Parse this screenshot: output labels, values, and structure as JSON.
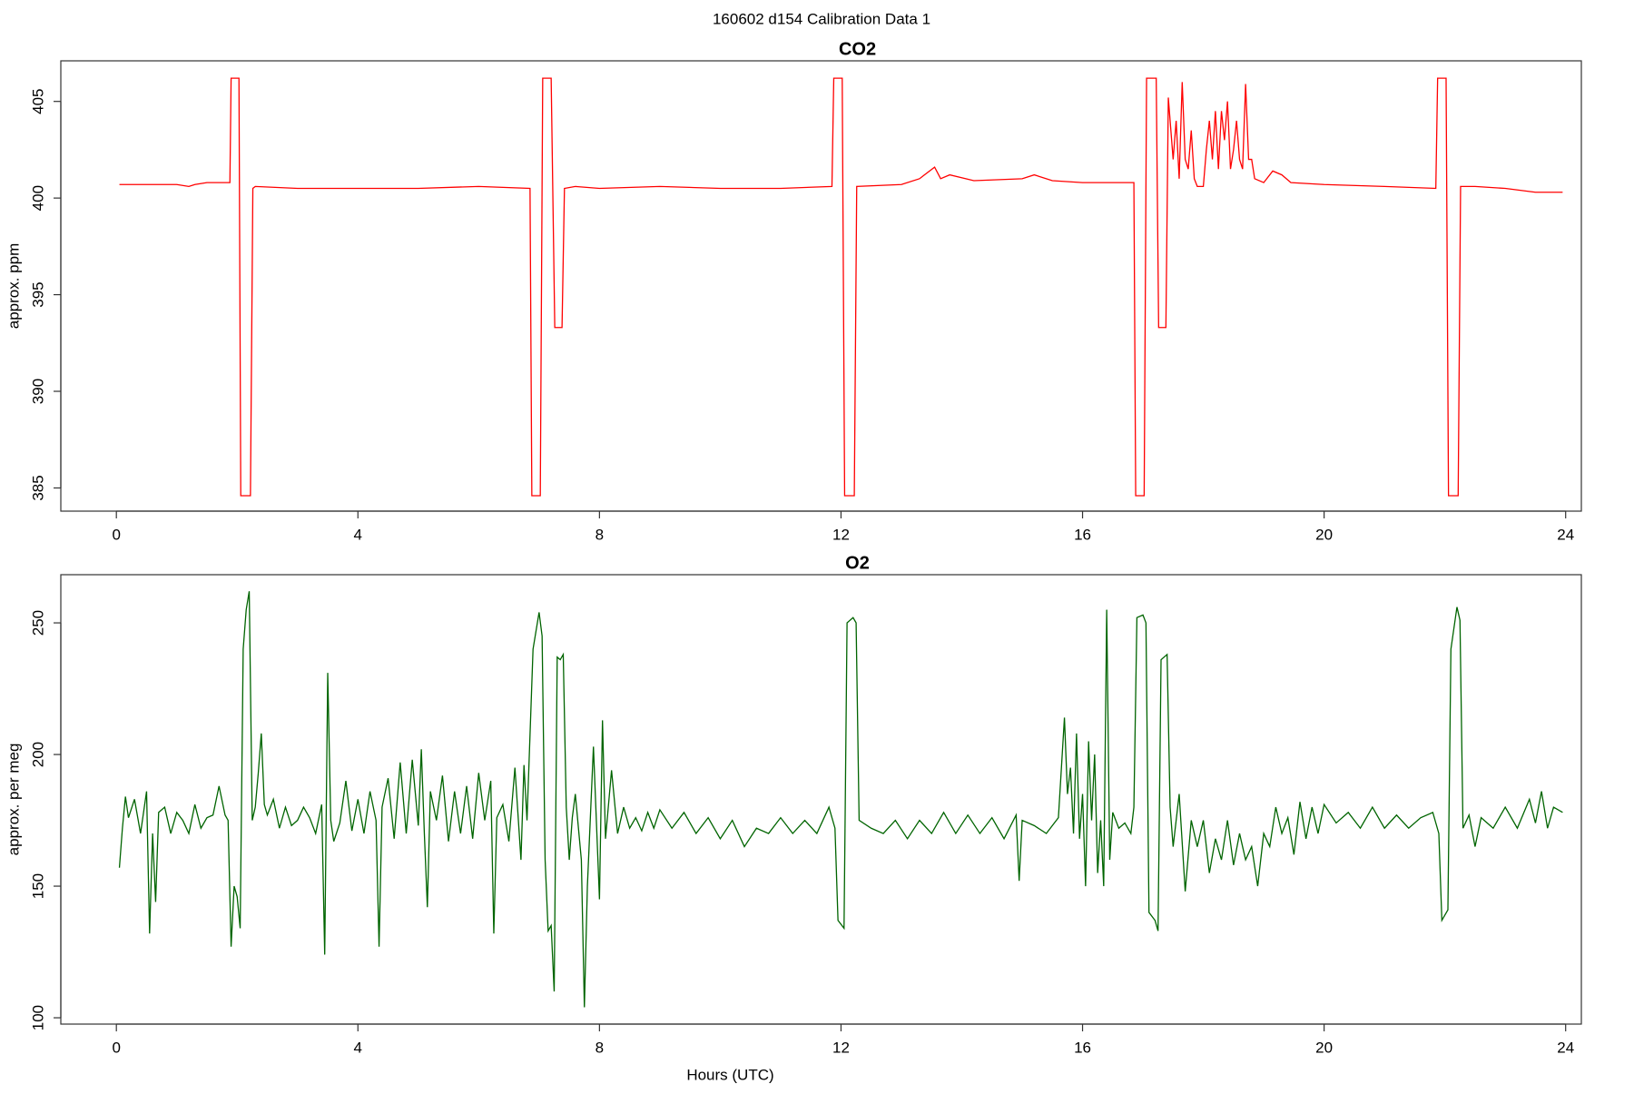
{
  "title": "160602   d154   Calibration Data 1",
  "chart_data": [
    {
      "type": "line",
      "title": "CO2",
      "ylabel": "approx. ppm",
      "color": "#ff0000",
      "xlim": [
        -0.92,
        24.26
      ],
      "xticks": [
        0,
        4,
        8,
        12,
        16,
        20,
        24
      ],
      "ylim": [
        383.8,
        407.1
      ],
      "yticks": [
        385,
        390,
        395,
        400,
        405
      ],
      "x": [
        0.05,
        0.5,
        1.0,
        1.2,
        1.3,
        1.5,
        1.88,
        1.9,
        2.0,
        2.03,
        2.06,
        2.22,
        2.26,
        2.3,
        3.0,
        4.0,
        5.0,
        6.0,
        6.85,
        6.88,
        7.02,
        7.06,
        7.2,
        7.26,
        7.38,
        7.42,
        7.6,
        8.0,
        9.0,
        10.0,
        11.0,
        11.85,
        11.88,
        12.02,
        12.06,
        12.22,
        12.26,
        13.0,
        13.3,
        13.55,
        13.65,
        13.8,
        14.2,
        15.0,
        15.2,
        15.5,
        16.0,
        16.5,
        16.85,
        16.88,
        17.02,
        17.06,
        17.22,
        17.26,
        17.38,
        17.42,
        17.5,
        17.55,
        17.6,
        17.65,
        17.7,
        17.75,
        17.8,
        17.85,
        17.9,
        18.0,
        18.05,
        18.1,
        18.15,
        18.2,
        18.25,
        18.3,
        18.35,
        18.4,
        18.45,
        18.5,
        18.55,
        18.6,
        18.65,
        18.7,
        18.75,
        18.8,
        18.85,
        19.0,
        19.15,
        19.3,
        19.45,
        20.0,
        21.0,
        21.85,
        21.88,
        22.02,
        22.06,
        22.22,
        22.26,
        22.5,
        23.0,
        23.5,
        23.95
      ],
      "values": [
        400.7,
        400.7,
        400.7,
        400.6,
        400.7,
        400.8,
        400.8,
        406.2,
        406.2,
        406.2,
        384.6,
        384.6,
        400.5,
        400.6,
        400.5,
        400.5,
        400.5,
        400.6,
        400.5,
        384.6,
        384.6,
        406.2,
        406.2,
        393.3,
        393.3,
        400.5,
        400.6,
        400.5,
        400.6,
        400.5,
        400.5,
        400.6,
        406.2,
        406.2,
        384.6,
        384.6,
        400.6,
        400.7,
        401.0,
        401.6,
        401.0,
        401.2,
        400.9,
        401.0,
        401.2,
        400.9,
        400.8,
        400.8,
        400.8,
        384.6,
        384.6,
        406.2,
        406.2,
        393.3,
        393.3,
        405.2,
        402.0,
        404.0,
        401.0,
        406.0,
        402.0,
        401.5,
        403.5,
        401.0,
        400.6,
        400.6,
        402.5,
        404.0,
        402.0,
        404.5,
        401.5,
        404.5,
        403.0,
        405.0,
        401.5,
        402.5,
        404.0,
        402.0,
        401.5,
        405.9,
        402.0,
        402.0,
        401.0,
        400.8,
        401.4,
        401.2,
        400.8,
        400.7,
        400.6,
        400.5,
        406.2,
        406.2,
        384.6,
        384.6,
        400.6,
        400.6,
        400.5,
        400.3,
        400.3
      ]
    },
    {
      "type": "line",
      "title": "O2",
      "ylabel": "approx. per meg",
      "xlabel": "Hours (UTC)",
      "color": "#006400",
      "xlim": [
        -0.92,
        24.26
      ],
      "xticks": [
        0,
        4,
        8,
        12,
        16,
        20,
        24
      ],
      "ylim": [
        97.6,
        268.3
      ],
      "yticks": [
        100,
        150,
        200,
        250
      ],
      "x": [
        0.05,
        0.1,
        0.15,
        0.2,
        0.3,
        0.4,
        0.5,
        0.55,
        0.6,
        0.65,
        0.7,
        0.8,
        0.9,
        1.0,
        1.1,
        1.2,
        1.3,
        1.4,
        1.5,
        1.6,
        1.7,
        1.8,
        1.85,
        1.9,
        1.95,
        2.0,
        2.05,
        2.1,
        2.15,
        2.2,
        2.25,
        2.3,
        2.35,
        2.4,
        2.45,
        2.5,
        2.6,
        2.7,
        2.8,
        2.9,
        3.0,
        3.1,
        3.2,
        3.3,
        3.4,
        3.45,
        3.5,
        3.55,
        3.6,
        3.7,
        3.8,
        3.9,
        4.0,
        4.1,
        4.2,
        4.3,
        4.35,
        4.4,
        4.5,
        4.6,
        4.7,
        4.8,
        4.9,
        5.0,
        5.05,
        5.1,
        5.15,
        5.2,
        5.3,
        5.4,
        5.5,
        5.6,
        5.7,
        5.8,
        5.9,
        6.0,
        6.1,
        6.2,
        6.25,
        6.3,
        6.4,
        6.5,
        6.6,
        6.7,
        6.75,
        6.8,
        6.9,
        7.0,
        7.05,
        7.1,
        7.15,
        7.2,
        7.25,
        7.3,
        7.35,
        7.4,
        7.45,
        7.5,
        7.55,
        7.6,
        7.7,
        7.75,
        7.8,
        7.9,
        8.0,
        8.05,
        8.1,
        8.2,
        8.3,
        8.4,
        8.5,
        8.6,
        8.7,
        8.8,
        8.9,
        9.0,
        9.2,
        9.4,
        9.6,
        9.8,
        10.0,
        10.2,
        10.4,
        10.6,
        10.8,
        11.0,
        11.2,
        11.4,
        11.6,
        11.8,
        11.9,
        11.95,
        12.05,
        12.1,
        12.2,
        12.25,
        12.3,
        12.5,
        12.7,
        12.9,
        13.1,
        13.3,
        13.5,
        13.7,
        13.9,
        14.1,
        14.3,
        14.5,
        14.7,
        14.9,
        14.95,
        15.0,
        15.2,
        15.4,
        15.6,
        15.7,
        15.75,
        15.8,
        15.85,
        15.9,
        15.95,
        16.0,
        16.05,
        16.1,
        16.15,
        16.2,
        16.25,
        16.3,
        16.35,
        16.4,
        16.45,
        16.5,
        16.6,
        16.7,
        16.8,
        16.85,
        16.9,
        17.0,
        17.05,
        17.1,
        17.2,
        17.25,
        17.3,
        17.4,
        17.45,
        17.5,
        17.6,
        17.7,
        17.8,
        17.9,
        18.0,
        18.1,
        18.2,
        18.3,
        18.4,
        18.5,
        18.6,
        18.7,
        18.8,
        18.9,
        19.0,
        19.1,
        19.2,
        19.3,
        19.4,
        19.5,
        19.6,
        19.7,
        19.8,
        19.9,
        20.0,
        20.2,
        20.4,
        20.6,
        20.8,
        21.0,
        21.2,
        21.4,
        21.6,
        21.8,
        21.9,
        21.95,
        22.05,
        22.1,
        22.2,
        22.25,
        22.3,
        22.4,
        22.5,
        22.6,
        22.8,
        23.0,
        23.2,
        23.4,
        23.5,
        23.6,
        23.7,
        23.8,
        23.95
      ],
      "values": [
        157,
        172,
        184,
        176,
        183,
        170,
        186,
        132,
        170,
        144,
        178,
        180,
        170,
        178,
        175,
        170,
        181,
        172,
        176,
        177,
        188,
        177,
        175,
        127,
        150,
        146,
        134,
        240,
        255,
        262,
        175,
        180,
        193,
        208,
        181,
        177,
        183,
        172,
        180,
        173,
        175,
        180,
        176,
        170,
        181,
        124,
        231,
        175,
        167,
        174,
        190,
        171,
        183,
        170,
        186,
        175,
        127,
        180,
        191,
        168,
        197,
        170,
        198,
        173,
        202,
        170,
        142,
        186,
        175,
        192,
        167,
        186,
        170,
        188,
        168,
        193,
        175,
        190,
        132,
        176,
        181,
        167,
        195,
        160,
        196,
        175,
        240,
        254,
        245,
        160,
        133,
        135,
        110,
        237,
        236,
        238,
        180,
        160,
        176,
        185,
        160,
        104,
        150,
        203,
        145,
        213,
        168,
        194,
        170,
        180,
        172,
        176,
        171,
        178,
        172,
        179,
        172,
        178,
        170,
        176,
        168,
        175,
        165,
        172,
        170,
        176,
        170,
        175,
        170,
        180,
        172,
        137,
        134,
        250,
        252,
        250,
        175,
        172,
        170,
        175,
        168,
        175,
        170,
        178,
        170,
        177,
        170,
        176,
        168,
        177,
        152,
        175,
        173,
        170,
        176,
        214,
        185,
        195,
        170,
        208,
        168,
        185,
        150,
        205,
        175,
        200,
        155,
        175,
        150,
        255,
        160,
        178,
        172,
        174,
        170,
        180,
        252,
        253,
        250,
        140,
        137,
        133,
        236,
        238,
        180,
        165,
        185,
        148,
        175,
        165,
        175,
        155,
        168,
        160,
        175,
        158,
        170,
        160,
        165,
        150,
        170,
        165,
        180,
        170,
        176,
        162,
        182,
        168,
        180,
        170,
        181,
        174,
        178,
        172,
        180,
        172,
        177,
        172,
        176,
        178,
        170,
        137,
        141,
        240,
        256,
        251,
        172,
        177,
        165,
        176,
        172,
        180,
        172,
        183,
        174,
        186,
        172,
        180,
        178
      ]
    }
  ]
}
